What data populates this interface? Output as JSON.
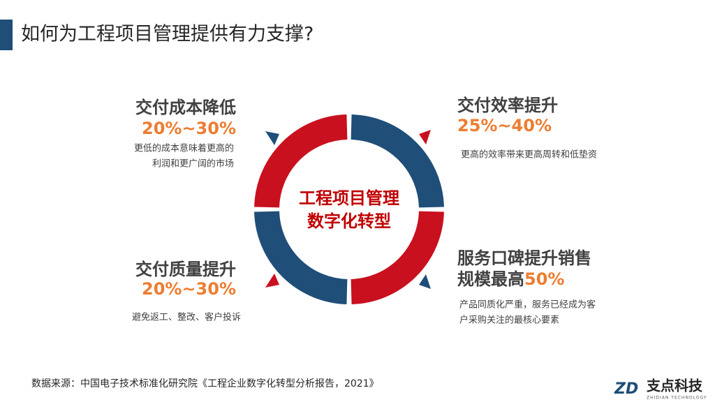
{
  "header": {
    "title": "如何为工程项目管理提供有力支撑?"
  },
  "center": {
    "lines": [
      "工程项目管理",
      "数字化转型"
    ]
  },
  "quadrants": [
    {
      "title": "交付成本降低",
      "figure": "20%~30%",
      "description": [
        "更低的成本意味着更高的",
        "利润和更广阔的市场"
      ]
    },
    {
      "title": "交付效率提升",
      "figure": "25%~40%",
      "description": [
        "更高的效率带来更高周转和低垫资"
      ]
    },
    {
      "title": "交付质量提升",
      "figure": "20%~30%",
      "description": [
        "避免返工、整改、客户投诉"
      ]
    },
    {
      "title": "服务口碑提升销售",
      "figure_prefix": "规模最高",
      "figure": "50%",
      "description": [
        "产品同质化严重，服务已经成为客",
        "户采购关注的最核心要素"
      ]
    }
  ],
  "footer": {
    "source": "数据来源：中国电子技术标准化研究院《工程企业数字化转型分析报告，2021》"
  },
  "logo": {
    "mark": "ZD",
    "name": "支点科技",
    "tagline": "ZHIDIAN TECHNOLOGY"
  }
}
